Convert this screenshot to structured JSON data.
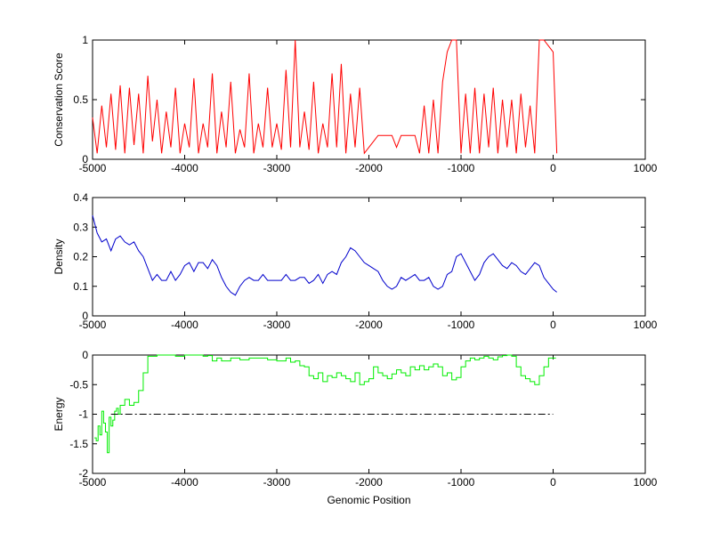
{
  "chart_data": [
    {
      "type": "line",
      "ylabel": "Conservation Score",
      "xlabel": "",
      "xlim": [
        -5000,
        1000
      ],
      "ylim": [
        0,
        1
      ],
      "xticks": [
        -5000,
        -4000,
        -3000,
        -2000,
        -1000,
        0,
        1000
      ],
      "yticks": [
        0,
        0.5,
        1
      ],
      "xtick_labels": [
        "-5000",
        "-4000",
        "-3000",
        "-2000",
        "-1000",
        "0",
        "1000"
      ],
      "ytick_labels": [
        "0",
        "0.5",
        "1"
      ],
      "grid": false,
      "series": [
        {
          "color": "#ff0000",
          "x": [
            -5000,
            -4950,
            -4900,
            -4850,
            -4800,
            -4750,
            -4700,
            -4650,
            -4600,
            -4550,
            -4500,
            -4450,
            -4400,
            -4350,
            -4300,
            -4250,
            -4200,
            -4150,
            -4100,
            -4050,
            -4000,
            -3950,
            -3900,
            -3850,
            -3800,
            -3750,
            -3700,
            -3650,
            -3600,
            -3550,
            -3500,
            -3450,
            -3400,
            -3350,
            -3300,
            -3250,
            -3200,
            -3150,
            -3100,
            -3050,
            -3000,
            -2950,
            -2900,
            -2850,
            -2800,
            -2750,
            -2700,
            -2650,
            -2600,
            -2550,
            -2500,
            -2450,
            -2400,
            -2350,
            -2300,
            -2250,
            -2200,
            -2150,
            -2100,
            -2050,
            -2000,
            -1950,
            -1900,
            -1850,
            -1800,
            -1750,
            -1700,
            -1650,
            -1600,
            -1550,
            -1500,
            -1450,
            -1400,
            -1350,
            -1300,
            -1250,
            -1200,
            -1150,
            -1100,
            -1050,
            -1000,
            -950,
            -900,
            -850,
            -800,
            -750,
            -700,
            -650,
            -600,
            -550,
            -500,
            -450,
            -400,
            -350,
            -300,
            -250,
            -200,
            -150,
            -100,
            -50,
            0,
            40
          ],
          "y": [
            0.35,
            0.05,
            0.45,
            0.1,
            0.55,
            0.08,
            0.62,
            0.05,
            0.6,
            0.12,
            0.55,
            0.05,
            0.7,
            0.15,
            0.5,
            0.05,
            0.4,
            0.1,
            0.6,
            0.05,
            0.3,
            0.1,
            0.68,
            0.05,
            0.3,
            0.1,
            0.72,
            0.05,
            0.4,
            0.1,
            0.65,
            0.05,
            0.25,
            0.1,
            0.72,
            0.05,
            0.3,
            0.1,
            0.6,
            0.1,
            0.3,
            0.08,
            0.75,
            0.1,
            1.0,
            0.1,
            0.4,
            0.08,
            0.65,
            0.05,
            0.3,
            0.1,
            0.72,
            0.1,
            0.8,
            0.05,
            0.55,
            0.1,
            0.6,
            0.05,
            0.1,
            0.15,
            0.2,
            0.2,
            0.2,
            0.2,
            0.1,
            0.2,
            0.2,
            0.2,
            0.2,
            0.05,
            0.45,
            0.05,
            0.5,
            0.05,
            0.65,
            0.9,
            1.0,
            1.0,
            0.05,
            0.55,
            0.05,
            0.6,
            0.05,
            0.55,
            0.1,
            0.6,
            0.05,
            0.5,
            0.1,
            0.5,
            0.05,
            0.55,
            0.1,
            0.45,
            0.05,
            1.0,
            1.0,
            0.95,
            0.9,
            0.05
          ]
        }
      ]
    },
    {
      "type": "line",
      "ylabel": "Density",
      "xlabel": "",
      "xlim": [
        -5000,
        1000
      ],
      "ylim": [
        0,
        0.4
      ],
      "xticks": [
        -5000,
        -4000,
        -3000,
        -2000,
        -1000,
        0,
        1000
      ],
      "yticks": [
        0,
        0.1,
        0.2,
        0.3,
        0.4
      ],
      "xtick_labels": [
        "-5000",
        "-4000",
        "-3000",
        "-2000",
        "-1000",
        "0",
        "1000"
      ],
      "ytick_labels": [
        "0",
        "0.1",
        "0.2",
        "0.3",
        "0.4"
      ],
      "grid": false,
      "series": [
        {
          "color": "#0000cc",
          "x": [
            -5000,
            -4950,
            -4900,
            -4850,
            -4800,
            -4750,
            -4700,
            -4650,
            -4600,
            -4550,
            -4500,
            -4450,
            -4400,
            -4350,
            -4300,
            -4250,
            -4200,
            -4150,
            -4100,
            -4050,
            -4000,
            -3950,
            -3900,
            -3850,
            -3800,
            -3750,
            -3700,
            -3650,
            -3600,
            -3550,
            -3500,
            -3450,
            -3400,
            -3350,
            -3300,
            -3250,
            -3200,
            -3150,
            -3100,
            -3050,
            -3000,
            -2950,
            -2900,
            -2850,
            -2800,
            -2750,
            -2700,
            -2650,
            -2600,
            -2550,
            -2500,
            -2450,
            -2400,
            -2350,
            -2300,
            -2250,
            -2200,
            -2150,
            -2100,
            -2050,
            -2000,
            -1950,
            -1900,
            -1850,
            -1800,
            -1750,
            -1700,
            -1650,
            -1600,
            -1550,
            -1500,
            -1450,
            -1400,
            -1350,
            -1300,
            -1250,
            -1200,
            -1150,
            -1100,
            -1050,
            -1000,
            -950,
            -900,
            -850,
            -800,
            -750,
            -700,
            -650,
            -600,
            -550,
            -500,
            -450,
            -400,
            -350,
            -300,
            -250,
            -200,
            -150,
            -100,
            -50,
            0,
            40
          ],
          "y": [
            0.34,
            0.28,
            0.25,
            0.26,
            0.22,
            0.26,
            0.27,
            0.25,
            0.24,
            0.25,
            0.22,
            0.2,
            0.16,
            0.12,
            0.14,
            0.12,
            0.12,
            0.15,
            0.12,
            0.14,
            0.17,
            0.18,
            0.15,
            0.18,
            0.18,
            0.16,
            0.19,
            0.17,
            0.13,
            0.1,
            0.08,
            0.07,
            0.1,
            0.12,
            0.13,
            0.12,
            0.12,
            0.14,
            0.12,
            0.12,
            0.12,
            0.12,
            0.14,
            0.12,
            0.12,
            0.13,
            0.13,
            0.11,
            0.12,
            0.14,
            0.11,
            0.14,
            0.15,
            0.14,
            0.18,
            0.2,
            0.23,
            0.22,
            0.2,
            0.18,
            0.17,
            0.16,
            0.15,
            0.12,
            0.1,
            0.09,
            0.1,
            0.13,
            0.12,
            0.13,
            0.14,
            0.12,
            0.12,
            0.13,
            0.1,
            0.09,
            0.1,
            0.14,
            0.15,
            0.2,
            0.21,
            0.18,
            0.15,
            0.12,
            0.14,
            0.18,
            0.2,
            0.21,
            0.19,
            0.17,
            0.16,
            0.18,
            0.17,
            0.15,
            0.14,
            0.16,
            0.18,
            0.17,
            0.13,
            0.11,
            0.09,
            0.08
          ]
        }
      ]
    },
    {
      "type": "line",
      "ylabel": "Energy",
      "xlabel": "Genomic Position",
      "xlim": [
        -5000,
        1000
      ],
      "ylim": [
        -2,
        0
      ],
      "xticks": [
        -5000,
        -4000,
        -3000,
        -2000,
        -1000,
        0,
        1000
      ],
      "yticks": [
        -2,
        -1.5,
        -1,
        -0.5,
        0
      ],
      "xtick_labels": [
        "-5000",
        "-4000",
        "-3000",
        "-2000",
        "-1000",
        "0",
        "1000"
      ],
      "ytick_labels": [
        "-2",
        "-1.5",
        "-1",
        "-0.5",
        "0"
      ],
      "grid": false,
      "series": [
        {
          "color": "#00ee00",
          "style": "steps",
          "x": [
            -4980,
            -4960,
            -4940,
            -4920,
            -4900,
            -4880,
            -4860,
            -4840,
            -4820,
            -4800,
            -4780,
            -4760,
            -4740,
            -4720,
            -4700,
            -4650,
            -4600,
            -4550,
            -4500,
            -4450,
            -4400,
            -4300,
            -4200,
            -4100,
            -4000,
            -3900,
            -3800,
            -3750,
            -3700,
            -3650,
            -3600,
            -3500,
            -3400,
            -3300,
            -3200,
            -3100,
            -3000,
            -2900,
            -2850,
            -2800,
            -2750,
            -2700,
            -2650,
            -2600,
            -2550,
            -2500,
            -2450,
            -2400,
            -2350,
            -2300,
            -2250,
            -2200,
            -2150,
            -2100,
            -2050,
            -2000,
            -1950,
            -1900,
            -1850,
            -1800,
            -1750,
            -1700,
            -1650,
            -1600,
            -1550,
            -1500,
            -1450,
            -1400,
            -1350,
            -1300,
            -1250,
            -1200,
            -1150,
            -1100,
            -1050,
            -1000,
            -950,
            -900,
            -850,
            -800,
            -750,
            -700,
            -650,
            -600,
            -550,
            -500,
            -450,
            -400,
            -350,
            -300,
            -250,
            -200,
            -150,
            -100,
            -50,
            0,
            30
          ],
          "y": [
            -1.4,
            -1.45,
            -1.2,
            -1.35,
            -0.95,
            -1.15,
            -1.3,
            -1.65,
            -1.05,
            -1.2,
            -1.1,
            -0.95,
            -0.9,
            -1.0,
            -0.85,
            -0.75,
            -0.85,
            -0.8,
            -0.6,
            -0.3,
            -0.02,
            0,
            0,
            -0.02,
            0,
            0,
            -0.02,
            -0.01,
            -0.1,
            -0.05,
            -0.1,
            -0.05,
            -0.08,
            -0.05,
            -0.05,
            -0.08,
            -0.1,
            -0.05,
            -0.12,
            -0.1,
            -0.18,
            -0.2,
            -0.35,
            -0.4,
            -0.3,
            -0.45,
            -0.35,
            -0.38,
            -0.3,
            -0.35,
            -0.4,
            -0.45,
            -0.3,
            -0.5,
            -0.45,
            -0.4,
            -0.2,
            -0.3,
            -0.35,
            -0.4,
            -0.32,
            -0.25,
            -0.3,
            -0.35,
            -0.2,
            -0.25,
            -0.18,
            -0.25,
            -0.2,
            -0.15,
            -0.2,
            -0.35,
            -0.3,
            -0.42,
            -0.38,
            -0.2,
            -0.1,
            -0.05,
            -0.08,
            -0.05,
            -0.02,
            -0.05,
            -0.08,
            -0.03,
            -0.01,
            0,
            -0.02,
            -0.2,
            -0.35,
            -0.4,
            -0.45,
            -0.5,
            -0.35,
            -0.2,
            -0.05,
            -0.05,
            -0.05
          ]
        },
        {
          "color": "#000000",
          "style": "dash-dot",
          "x": [
            -4800,
            0
          ],
          "y": [
            -1,
            -1
          ]
        }
      ]
    }
  ]
}
